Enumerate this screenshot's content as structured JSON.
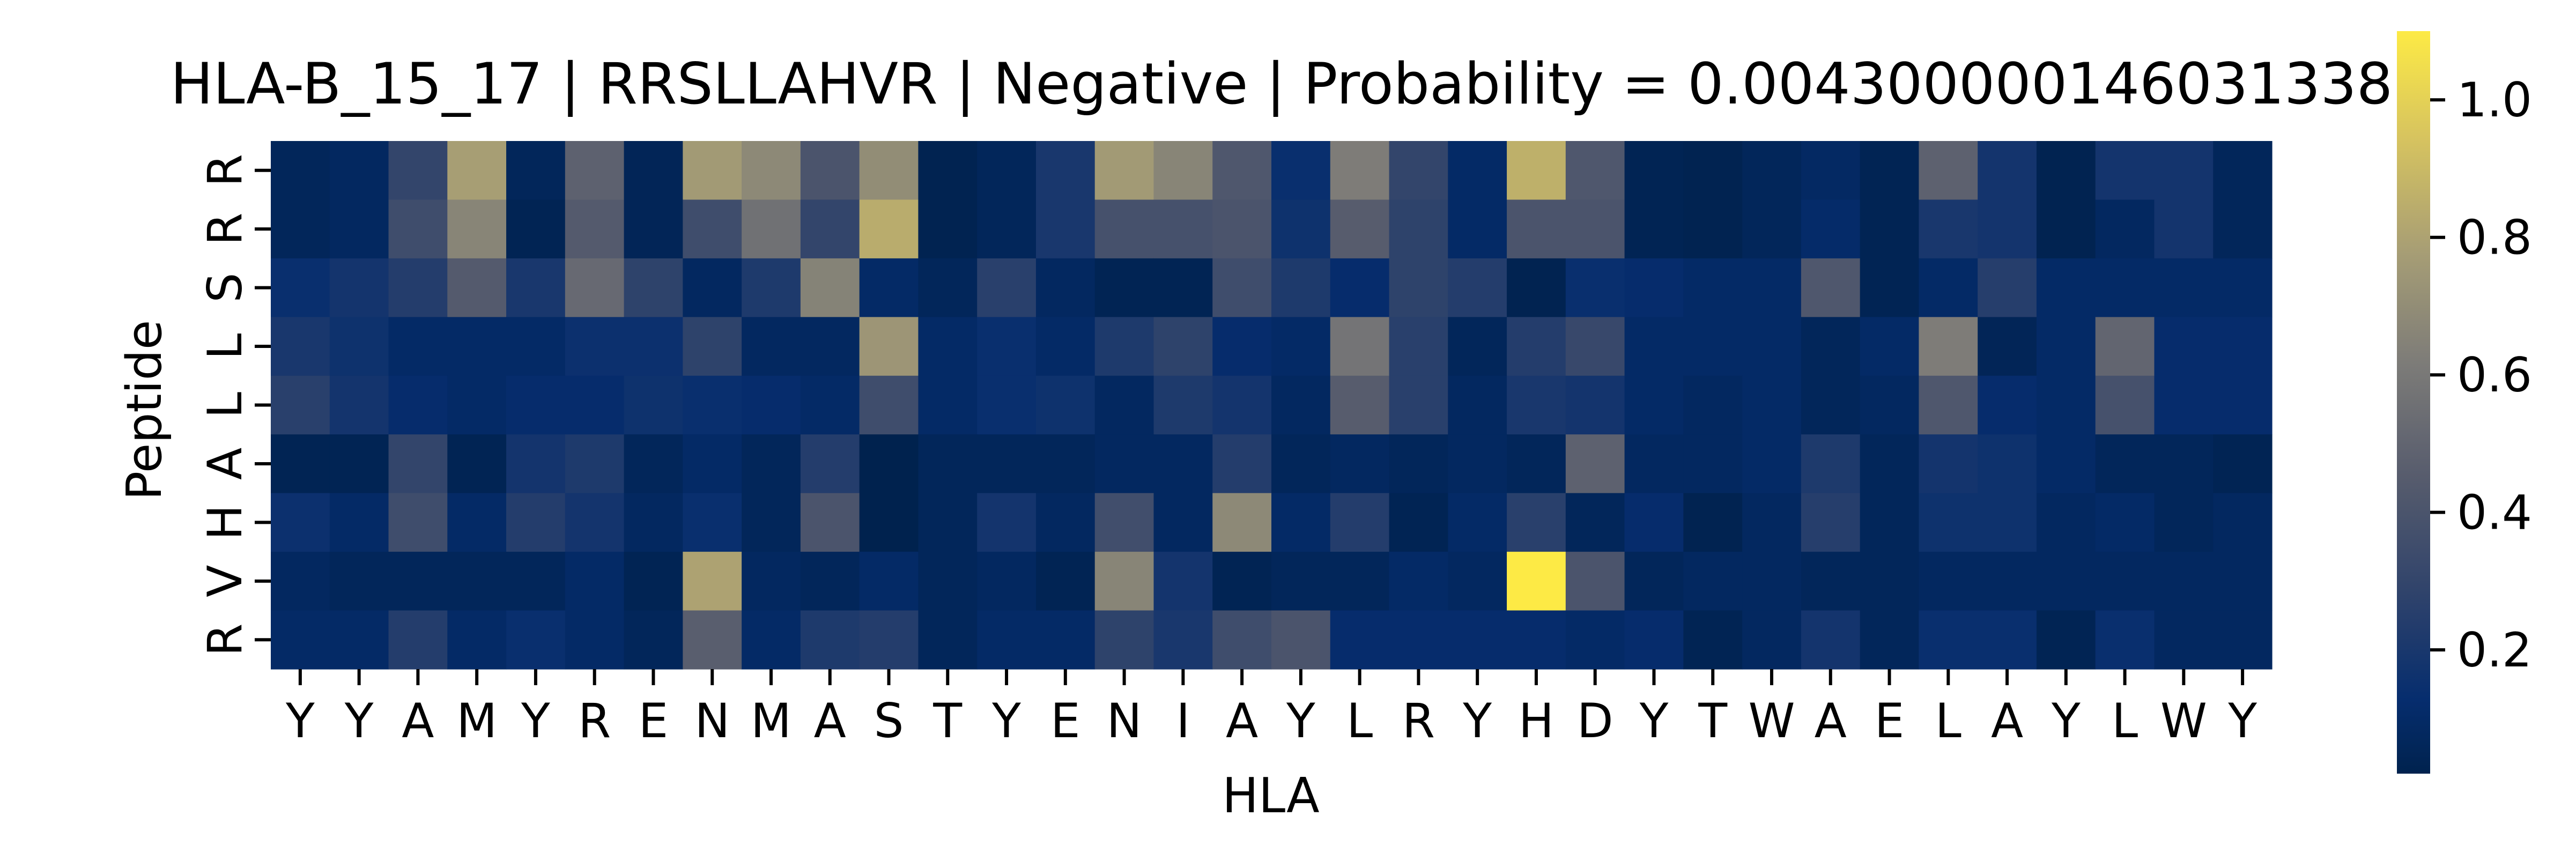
{
  "chart_data": {
    "type": "heatmap",
    "title": "HLA-B_15_17 | RRSLLAHVR | Negative | Probability = 0.004300000146031338",
    "xlabel": "HLA",
    "ylabel": "Peptide",
    "x_categories": [
      "Y",
      "Y",
      "A",
      "M",
      "Y",
      "R",
      "E",
      "N",
      "M",
      "A",
      "S",
      "T",
      "Y",
      "E",
      "N",
      "I",
      "A",
      "Y",
      "L",
      "R",
      "Y",
      "H",
      "D",
      "Y",
      "T",
      "W",
      "A",
      "E",
      "L",
      "A",
      "Y",
      "L",
      "W",
      "Y"
    ],
    "y_categories": [
      "R",
      "R",
      "S",
      "L",
      "L",
      "A",
      "H",
      "V",
      "R"
    ],
    "colormap": "cividis",
    "vmin": 0.02,
    "vmax": 1.1,
    "colorbar_ticks": [
      "0.2",
      "0.4",
      "0.6",
      "0.8",
      "1.0"
    ],
    "values": [
      [
        0.06,
        0.08,
        0.3,
        0.78,
        0.06,
        0.48,
        0.05,
        0.76,
        0.68,
        0.4,
        0.7,
        0.03,
        0.06,
        0.2,
        0.76,
        0.66,
        0.42,
        0.14,
        0.62,
        0.3,
        0.1,
        0.86,
        0.42,
        0.04,
        0.03,
        0.06,
        0.09,
        0.04,
        0.48,
        0.18,
        0.03,
        0.18,
        0.18,
        0.06
      ],
      [
        0.06,
        0.08,
        0.35,
        0.66,
        0.04,
        0.44,
        0.05,
        0.35,
        0.56,
        0.3,
        0.84,
        0.03,
        0.06,
        0.2,
        0.38,
        0.38,
        0.4,
        0.16,
        0.45,
        0.28,
        0.1,
        0.4,
        0.4,
        0.04,
        0.03,
        0.06,
        0.11,
        0.04,
        0.2,
        0.18,
        0.03,
        0.08,
        0.18,
        0.06
      ],
      [
        0.14,
        0.18,
        0.24,
        0.44,
        0.2,
        0.52,
        0.28,
        0.08,
        0.22,
        0.65,
        0.1,
        0.06,
        0.26,
        0.08,
        0.04,
        0.04,
        0.35,
        0.22,
        0.12,
        0.28,
        0.24,
        0.03,
        0.14,
        0.12,
        0.1,
        0.1,
        0.42,
        0.04,
        0.1,
        0.25,
        0.1,
        0.1,
        0.1,
        0.1
      ],
      [
        0.2,
        0.16,
        0.1,
        0.1,
        0.1,
        0.15,
        0.15,
        0.28,
        0.08,
        0.08,
        0.74,
        0.1,
        0.14,
        0.1,
        0.22,
        0.28,
        0.12,
        0.1,
        0.58,
        0.26,
        0.06,
        0.24,
        0.32,
        0.1,
        0.1,
        0.1,
        0.06,
        0.1,
        0.62,
        0.05,
        0.1,
        0.5,
        0.12,
        0.12
      ],
      [
        0.26,
        0.18,
        0.12,
        0.1,
        0.12,
        0.12,
        0.16,
        0.14,
        0.12,
        0.1,
        0.35,
        0.1,
        0.14,
        0.16,
        0.08,
        0.22,
        0.18,
        0.08,
        0.45,
        0.26,
        0.08,
        0.2,
        0.18,
        0.1,
        0.08,
        0.1,
        0.06,
        0.08,
        0.42,
        0.12,
        0.1,
        0.38,
        0.12,
        0.12
      ],
      [
        0.04,
        0.04,
        0.3,
        0.04,
        0.18,
        0.22,
        0.06,
        0.1,
        0.06,
        0.24,
        0.02,
        0.06,
        0.06,
        0.06,
        0.08,
        0.08,
        0.24,
        0.06,
        0.08,
        0.06,
        0.08,
        0.06,
        0.48,
        0.08,
        0.08,
        0.1,
        0.22,
        0.06,
        0.18,
        0.16,
        0.1,
        0.06,
        0.06,
        0.04
      ],
      [
        0.15,
        0.1,
        0.35,
        0.1,
        0.24,
        0.18,
        0.08,
        0.14,
        0.06,
        0.4,
        0.02,
        0.06,
        0.18,
        0.08,
        0.36,
        0.08,
        0.68,
        0.1,
        0.24,
        0.04,
        0.1,
        0.26,
        0.06,
        0.12,
        0.03,
        0.08,
        0.25,
        0.06,
        0.16,
        0.16,
        0.08,
        0.1,
        0.06,
        0.08
      ],
      [
        0.08,
        0.06,
        0.06,
        0.06,
        0.06,
        0.1,
        0.04,
        0.8,
        0.08,
        0.06,
        0.1,
        0.06,
        0.08,
        0.04,
        0.66,
        0.18,
        0.04,
        0.06,
        0.06,
        0.1,
        0.08,
        1.1,
        0.4,
        0.06,
        0.08,
        0.08,
        0.06,
        0.06,
        0.08,
        0.08,
        0.08,
        0.08,
        0.08,
        0.08
      ],
      [
        0.1,
        0.1,
        0.24,
        0.1,
        0.14,
        0.1,
        0.06,
        0.46,
        0.1,
        0.22,
        0.24,
        0.06,
        0.1,
        0.1,
        0.28,
        0.2,
        0.35,
        0.4,
        0.12,
        0.12,
        0.12,
        0.12,
        0.1,
        0.12,
        0.04,
        0.08,
        0.18,
        0.06,
        0.14,
        0.14,
        0.04,
        0.14,
        0.08,
        0.08
      ]
    ]
  }
}
